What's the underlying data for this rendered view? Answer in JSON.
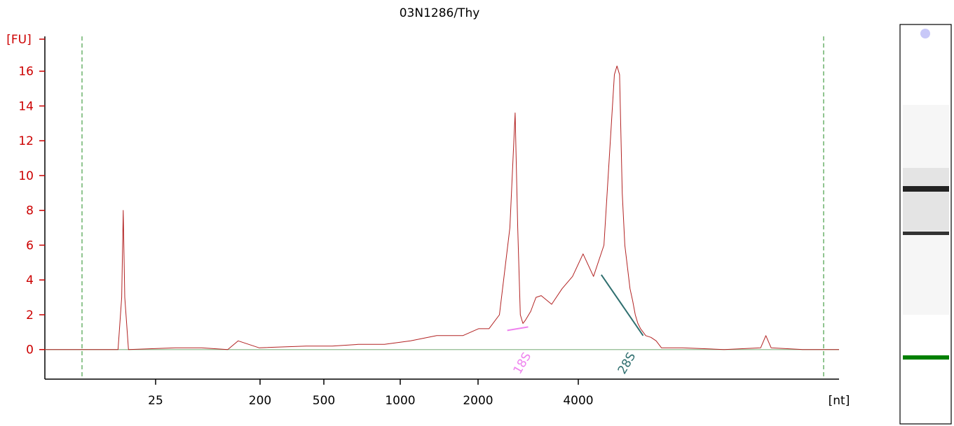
{
  "chart_data": {
    "type": "line",
    "title": "03N1286/Thy",
    "ylabel": "[FU]",
    "xlabel": "[nt]",
    "ylim": [
      -1.7,
      18
    ],
    "yticks": [
      0,
      2,
      4,
      6,
      8,
      10,
      12,
      14,
      16
    ],
    "xtick_labels": [
      "25",
      "200",
      "500",
      "1000",
      "2000",
      "4000"
    ],
    "grid": false,
    "colors": {
      "trace": "#b22222",
      "axis": "#000000",
      "y_axis_text": "#cc0000",
      "baseline": "#8fbc8f",
      "marker_lines": "#228b22",
      "peak_18s": "#ee82ee",
      "peak_28s": "#2f6f6f"
    },
    "series": [
      {
        "x": [
          -5,
          0,
          9,
          9.7,
          10.0,
          10.3,
          11,
          20,
          25,
          30,
          32,
          36,
          45,
          50,
          55,
          60,
          65,
          70,
          72,
          75,
          78,
          80,
          82,
          84,
          85,
          85.5,
          86,
          86.5,
          87,
          88,
          88.5,
          89,
          90,
          92,
          94,
          96,
          98,
          100,
          102,
          104,
          104.5,
          105,
          105.5,
          106,
          107,
          107.5,
          108,
          108.5,
          109,
          109.5,
          110,
          111,
          112,
          113,
          115,
          117,
          125,
          132,
          133,
          134,
          140,
          147
        ],
        "y": [
          0,
          0,
          0,
          3.0,
          8.0,
          3.0,
          0,
          0.1,
          0.1,
          0,
          0.5,
          0.1,
          0.2,
          0.2,
          0.3,
          0.3,
          0.5,
          0.8,
          0.8,
          0.8,
          1.2,
          1.2,
          2.0,
          7.0,
          13.6,
          7.0,
          2.0,
          1.5,
          1.7,
          2.2,
          2.6,
          3.0,
          3.1,
          2.6,
          3.5,
          4.2,
          5.5,
          4.2,
          6.0,
          15.8,
          16.3,
          15.8,
          9.0,
          6.0,
          3.5,
          2.8,
          2.0,
          1.5,
          1.2,
          1.0,
          0.8,
          0.7,
          0.5,
          0.1,
          0.1,
          0.1,
          0,
          0.1,
          0.8,
          0.1,
          0,
          0
        ]
      }
    ],
    "peaks": [
      {
        "label": "18S",
        "x0": 83.5,
        "y0": 1.1,
        "x1": 87.5,
        "y1": 1.3
      },
      {
        "label": "28S",
        "x0": 101.5,
        "y0": 4.3,
        "x1": 109.5,
        "y1": 0.8
      }
    ]
  },
  "gel": {
    "bands": [
      {
        "position": 0.42,
        "intensity": 1.0,
        "color": "#000000"
      },
      {
        "position": 0.58,
        "intensity": 0.85,
        "color": "#000000"
      },
      {
        "position": 0.84,
        "intensity": 1.0,
        "color": "#008000"
      }
    ]
  }
}
